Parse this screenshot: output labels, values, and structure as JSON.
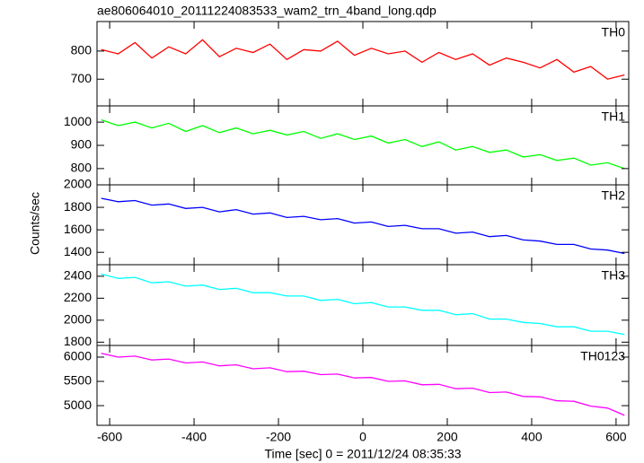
{
  "chart_data": {
    "type": "line",
    "title": "ae806064010_20111224083533_wam2_trn_4band_long.qdp",
    "x_label": "Time [sec] 0 = 2011/12/24 08:35:33",
    "y_label": "Counts/sec",
    "xlim": [
      -630,
      630
    ],
    "xticks": [
      -600,
      -400,
      -200,
      0,
      200,
      400,
      600
    ],
    "x": [
      -620,
      -580,
      -540,
      -500,
      -460,
      -420,
      -380,
      -340,
      -300,
      -260,
      -220,
      -180,
      -140,
      -100,
      -60,
      -20,
      20,
      60,
      100,
      140,
      180,
      220,
      260,
      300,
      340,
      380,
      420,
      460,
      500,
      540,
      580,
      620
    ],
    "series": [
      {
        "name": "TH0",
        "color": "#ff0000",
        "ylim": [
          605,
          905
        ],
        "yticks": [
          700,
          800
        ],
        "values": [
          805,
          790,
          830,
          775,
          815,
          790,
          840,
          780,
          810,
          795,
          825,
          770,
          805,
          800,
          835,
          785,
          810,
          790,
          800,
          760,
          795,
          770,
          790,
          750,
          775,
          760,
          740,
          770,
          725,
          745,
          700,
          715
        ]
      },
      {
        "name": "TH1",
        "color": "#00ff00",
        "ylim": [
          730,
          1070
        ],
        "yticks": [
          800,
          900,
          1000
        ],
        "values": [
          1010,
          985,
          1000,
          975,
          995,
          960,
          985,
          955,
          975,
          950,
          965,
          945,
          960,
          930,
          950,
          925,
          940,
          910,
          925,
          895,
          915,
          880,
          895,
          870,
          880,
          850,
          860,
          835,
          845,
          815,
          825,
          800
        ]
      },
      {
        "name": "TH2",
        "color": "#0000ff",
        "ylim": [
          1290,
          2000
        ],
        "yticks": [
          1400,
          1600,
          1800,
          2000
        ],
        "values": [
          1880,
          1850,
          1860,
          1820,
          1830,
          1790,
          1800,
          1760,
          1780,
          1740,
          1750,
          1710,
          1720,
          1690,
          1700,
          1660,
          1670,
          1630,
          1640,
          1610,
          1610,
          1570,
          1580,
          1540,
          1550,
          1510,
          1500,
          1470,
          1470,
          1430,
          1420,
          1390
        ]
      },
      {
        "name": "TH3",
        "color": "#00ffff",
        "ylim": [
          1770,
          2505
        ],
        "yticks": [
          1800,
          2000,
          2200,
          2400
        ],
        "values": [
          2420,
          2380,
          2390,
          2340,
          2350,
          2310,
          2320,
          2280,
          2290,
          2250,
          2250,
          2220,
          2220,
          2180,
          2190,
          2150,
          2160,
          2120,
          2120,
          2090,
          2090,
          2050,
          2060,
          2010,
          2010,
          1980,
          1970,
          1940,
          1940,
          1900,
          1900,
          1870
        ]
      },
      {
        "name": "TH0123",
        "color": "#ff00ff",
        "ylim": [
          4595,
          6240
        ],
        "yticks": [
          5000,
          5500,
          6000
        ],
        "values": [
          6080,
          6000,
          6020,
          5940,
          5960,
          5880,
          5900,
          5820,
          5840,
          5760,
          5780,
          5700,
          5710,
          5640,
          5650,
          5570,
          5580,
          5500,
          5510,
          5430,
          5440,
          5350,
          5360,
          5270,
          5280,
          5190,
          5180,
          5100,
          5090,
          4990,
          4950,
          4800
        ]
      }
    ]
  }
}
